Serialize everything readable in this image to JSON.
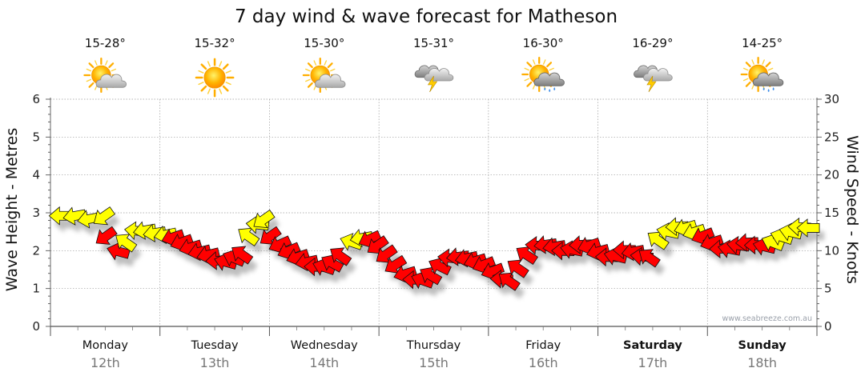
{
  "chart_data": {
    "type": "line",
    "title": "7 day wind & wave forecast for Matheson",
    "ylabel_left": "Wave Height - Metres",
    "ylabel_right": "Wind Speed - Knots",
    "ylim_left": [
      0,
      6
    ],
    "ylim_right": [
      0,
      30
    ],
    "yticks_left": [
      "0",
      "1",
      "2",
      "3",
      "4",
      "5",
      "6"
    ],
    "yticks_right": [
      "0",
      "5",
      "10",
      "15",
      "20",
      "25",
      "30"
    ],
    "grid": true,
    "watermark": "www.seabreeze.com.au",
    "days": [
      {
        "day": "Monday",
        "date": "12th",
        "temp": "15-28°",
        "icon": "partly-cloudy-icon",
        "bold": false
      },
      {
        "day": "Tuesday",
        "date": "13th",
        "temp": "15-32°",
        "icon": "sunny-icon",
        "bold": false
      },
      {
        "day": "Wednesday",
        "date": "14th",
        "temp": "15-30°",
        "icon": "partly-cloudy-icon",
        "bold": false
      },
      {
        "day": "Thursday",
        "date": "15th",
        "temp": "15-31°",
        "icon": "storm-icon",
        "bold": false
      },
      {
        "day": "Friday",
        "date": "16th",
        "temp": "16-30°",
        "icon": "sun-rain-icon",
        "bold": false
      },
      {
        "day": "Saturday",
        "date": "17th",
        "temp": "16-29°",
        "icon": "storm-icon",
        "bold": true
      },
      {
        "day": "Sunday",
        "date": "18th",
        "temp": "14-25°",
        "icon": "sun-rain-icon",
        "bold": true
      }
    ],
    "wind_arrows_knots": [
      {
        "t": 0.09,
        "v": 14.6,
        "c": "y"
      },
      {
        "t": 0.22,
        "v": 14.3,
        "c": "y"
      },
      {
        "t": 0.35,
        "v": 13.9,
        "c": "y"
      },
      {
        "t": 0.5,
        "v": 13.6,
        "c": "y"
      },
      {
        "t": 0.52,
        "v": 11.0,
        "c": "r"
      },
      {
        "t": 0.62,
        "v": 10.3,
        "c": "r"
      },
      {
        "t": 0.7,
        "v": 12.0,
        "c": "y"
      },
      {
        "t": 0.78,
        "v": 12.8,
        "c": "y"
      },
      {
        "t": 0.86,
        "v": 12.4,
        "c": "y"
      },
      {
        "t": 0.95,
        "v": 12.1,
        "c": "y"
      },
      {
        "t": 1.05,
        "v": 11.8,
        "c": "y"
      },
      {
        "t": 1.12,
        "v": 11.3,
        "c": "r"
      },
      {
        "t": 1.2,
        "v": 10.6,
        "c": "r"
      },
      {
        "t": 1.28,
        "v": 10.0,
        "c": "r"
      },
      {
        "t": 1.36,
        "v": 9.5,
        "c": "r"
      },
      {
        "t": 1.44,
        "v": 9.1,
        "c": "r"
      },
      {
        "t": 1.52,
        "v": 8.6,
        "c": "r"
      },
      {
        "t": 1.6,
        "v": 8.9,
        "c": "r"
      },
      {
        "t": 1.68,
        "v": 9.6,
        "c": "r"
      },
      {
        "t": 1.76,
        "v": 10.4,
        "c": "r"
      },
      {
        "t": 1.82,
        "v": 12.8,
        "c": "y"
      },
      {
        "t": 1.89,
        "v": 13.6,
        "c": "y"
      },
      {
        "t": 1.96,
        "v": 13.2,
        "c": "y"
      },
      {
        "t": 2.02,
        "v": 11.0,
        "c": "r"
      },
      {
        "t": 2.1,
        "v": 10.2,
        "c": "r"
      },
      {
        "t": 2.18,
        "v": 9.4,
        "c": "r"
      },
      {
        "t": 2.26,
        "v": 8.7,
        "c": "r"
      },
      {
        "t": 2.34,
        "v": 8.2,
        "c": "r"
      },
      {
        "t": 2.42,
        "v": 7.9,
        "c": "r"
      },
      {
        "t": 2.5,
        "v": 8.3,
        "c": "r"
      },
      {
        "t": 2.58,
        "v": 9.1,
        "c": "r"
      },
      {
        "t": 2.66,
        "v": 10.2,
        "c": "r"
      },
      {
        "t": 2.75,
        "v": 11.6,
        "c": "y"
      },
      {
        "t": 2.84,
        "v": 11.4,
        "c": "y"
      },
      {
        "t": 2.92,
        "v": 10.9,
        "c": "r"
      },
      {
        "t": 3.0,
        "v": 9.8,
        "c": "r"
      },
      {
        "t": 3.08,
        "v": 8.6,
        "c": "r"
      },
      {
        "t": 3.16,
        "v": 7.3,
        "c": "r"
      },
      {
        "t": 3.24,
        "v": 6.5,
        "c": "r"
      },
      {
        "t": 3.32,
        "v": 6.2,
        "c": "r"
      },
      {
        "t": 3.4,
        "v": 6.6,
        "c": "r"
      },
      {
        "t": 3.48,
        "v": 7.5,
        "c": "r"
      },
      {
        "t": 3.56,
        "v": 8.6,
        "c": "r"
      },
      {
        "t": 3.64,
        "v": 9.2,
        "c": "r"
      },
      {
        "t": 3.72,
        "v": 9.0,
        "c": "r"
      },
      {
        "t": 3.8,
        "v": 8.7,
        "c": "r"
      },
      {
        "t": 3.88,
        "v": 8.2,
        "c": "r"
      },
      {
        "t": 3.96,
        "v": 7.6,
        "c": "r"
      },
      {
        "t": 4.04,
        "v": 6.8,
        "c": "r"
      },
      {
        "t": 4.12,
        "v": 6.3,
        "c": "r"
      },
      {
        "t": 4.2,
        "v": 6.9,
        "c": "r"
      },
      {
        "t": 4.28,
        "v": 8.6,
        "c": "r"
      },
      {
        "t": 4.36,
        "v": 10.3,
        "c": "r"
      },
      {
        "t": 4.44,
        "v": 10.8,
        "c": "r"
      },
      {
        "t": 4.52,
        "v": 10.6,
        "c": "r"
      },
      {
        "t": 4.6,
        "v": 10.3,
        "c": "r"
      },
      {
        "t": 4.68,
        "v": 10.0,
        "c": "r"
      },
      {
        "t": 4.76,
        "v": 10.4,
        "c": "r"
      },
      {
        "t": 4.84,
        "v": 10.7,
        "c": "r"
      },
      {
        "t": 4.92,
        "v": 10.2,
        "c": "r"
      },
      {
        "t": 5.0,
        "v": 9.5,
        "c": "r"
      },
      {
        "t": 5.08,
        "v": 9.2,
        "c": "r"
      },
      {
        "t": 5.16,
        "v": 9.6,
        "c": "r"
      },
      {
        "t": 5.24,
        "v": 10.1,
        "c": "r"
      },
      {
        "t": 5.32,
        "v": 9.6,
        "c": "r"
      },
      {
        "t": 5.4,
        "v": 9.4,
        "c": "r"
      },
      {
        "t": 5.48,
        "v": 10.0,
        "c": "r"
      },
      {
        "t": 5.56,
        "v": 12.3,
        "c": "y"
      },
      {
        "t": 5.64,
        "v": 12.8,
        "c": "y"
      },
      {
        "t": 5.72,
        "v": 13.1,
        "c": "y"
      },
      {
        "t": 5.8,
        "v": 12.6,
        "c": "y"
      },
      {
        "t": 5.88,
        "v": 12.0,
        "c": "y"
      },
      {
        "t": 5.96,
        "v": 11.4,
        "c": "r"
      },
      {
        "t": 6.04,
        "v": 10.6,
        "c": "r"
      },
      {
        "t": 6.12,
        "v": 10.2,
        "c": "r"
      },
      {
        "t": 6.2,
        "v": 10.5,
        "c": "r"
      },
      {
        "t": 6.28,
        "v": 10.9,
        "c": "r"
      },
      {
        "t": 6.36,
        "v": 11.0,
        "c": "r"
      },
      {
        "t": 6.44,
        "v": 10.7,
        "c": "r"
      },
      {
        "t": 6.52,
        "v": 10.9,
        "c": "r"
      },
      {
        "t": 6.6,
        "v": 11.6,
        "c": "y"
      },
      {
        "t": 6.68,
        "v": 12.3,
        "c": "y"
      },
      {
        "t": 6.76,
        "v": 12.8,
        "c": "y"
      },
      {
        "t": 6.84,
        "v": 13.2,
        "c": "y"
      },
      {
        "t": 6.92,
        "v": 13.0,
        "c": "y"
      }
    ],
    "colors": {
      "strong": "#ff0000",
      "moderate": "#ffff00",
      "outline": "#111111",
      "shadow": "#888888"
    }
  }
}
